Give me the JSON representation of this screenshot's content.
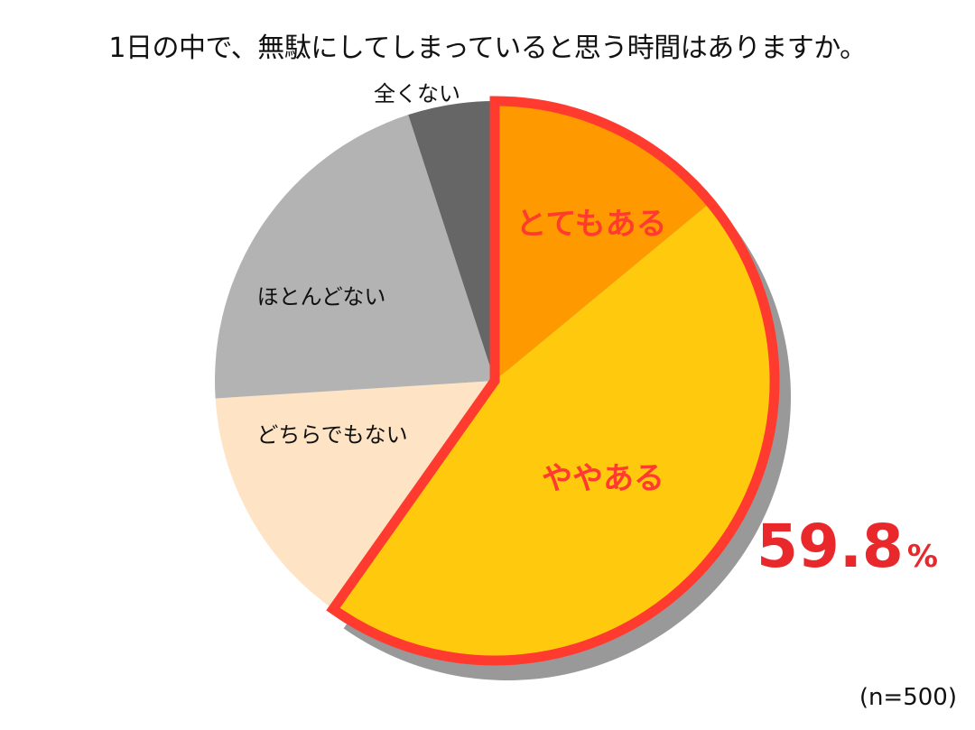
{
  "chart_data": {
    "type": "pie",
    "title": "1日の中で、無駄にしてしまっていると思う時間はありますか。",
    "note": "(n=500)",
    "slices": [
      {
        "label": "とてもある",
        "value": 14.0,
        "color": "#ff9900",
        "label_color": "#ff3b2f"
      },
      {
        "label": "ややある",
        "value": 45.8,
        "color": "#ffc90e",
        "label_color": "#ff3b2f"
      },
      {
        "label": "どちらでもない",
        "value": 14.2,
        "color": "#fee4c4",
        "label_color": "#111111"
      },
      {
        "label": "ほとんどない",
        "value": 21.0,
        "color": "#b3b3b3",
        "label_color": "#111111"
      },
      {
        "label": "全くない",
        "value": 5.0,
        "color": "#666666",
        "label_color": "#111111"
      }
    ],
    "highlight": {
      "value_text": "59.8",
      "unit": "%",
      "color": "#e8282b",
      "outline_color": "#ff3b30",
      "covers": [
        "とてもある",
        "ややある"
      ]
    }
  }
}
